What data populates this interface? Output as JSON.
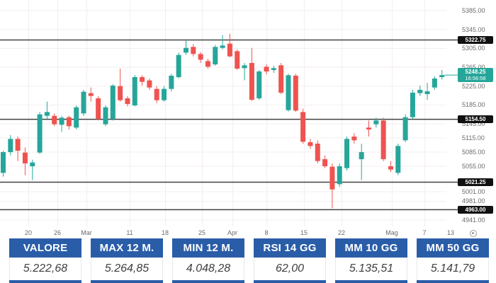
{
  "colors": {
    "up": "#26a69a",
    "down": "#ef5350",
    "level_line": "#424242",
    "grid": "#f4eef0",
    "axis_text": "#6b6b6b",
    "badge_dark_bg": "#101010",
    "badge_text": "#ffffff",
    "price_badge_bg": "#26a69a",
    "table_header_bg": "#2a5da8",
    "table_header_text": "#ffffff",
    "table_value_text": "#3f3f3f"
  },
  "chart_data": [
    {
      "type": "candlestick",
      "title": "",
      "xlabel": "",
      "ylabel": "",
      "grid": true,
      "legend": "none",
      "ylim": [
        4935,
        5392
      ],
      "x_tick_labels": [
        {
          "t": "20",
          "x": 40
        },
        {
          "t": "26",
          "x": 81
        },
        {
          "t": "Mar",
          "x": 122
        },
        {
          "t": "11",
          "x": 183
        },
        {
          "t": "18",
          "x": 233
        },
        {
          "t": "25",
          "x": 285
        },
        {
          "t": "Apr",
          "x": 328
        },
        {
          "t": "8",
          "x": 376
        },
        {
          "t": "15",
          "x": 429
        },
        {
          "t": "22",
          "x": 482
        },
        {
          "t": "Mag",
          "x": 553
        },
        {
          "t": "7",
          "x": 599
        },
        {
          "t": "13",
          "x": 636
        }
      ],
      "y_tick_labels": [
        "5385.00",
        "5345.00",
        "5305.00",
        "5265.00",
        "5225.00",
        "5185.00",
        "5145.00",
        "5115.00",
        "5085.00",
        "5055.00",
        "5001.00",
        "4981.00",
        "4941.00"
      ],
      "horizontal_levels": [
        "5322.75",
        "5154.50",
        "5021.25",
        "4963.00"
      ],
      "last_price": "5248.25",
      "last_price_time": "16:56:58",
      "ohlc": [
        [
          5041,
          5088,
          5033,
          5085
        ],
        [
          5085,
          5121,
          5078,
          5113
        ],
        [
          5113,
          5118,
          5066,
          5088
        ],
        [
          5084,
          5095,
          5036,
          5061
        ],
        [
          5055,
          5069,
          5026,
          5063
        ],
        [
          5084,
          5170,
          5081,
          5165
        ],
        [
          5162,
          5192,
          5155,
          5170
        ],
        [
          5162,
          5167,
          5140,
          5144
        ],
        [
          5143,
          5162,
          5128,
          5158
        ],
        [
          5159,
          5162,
          5133,
          5140
        ],
        [
          5137,
          5184,
          5133,
          5180
        ],
        [
          5167,
          5217,
          5162,
          5213
        ],
        [
          5210,
          5222,
          5192,
          5204
        ],
        [
          5199,
          5204,
          5152,
          5155
        ],
        [
          5144,
          5184,
          5140,
          5180
        ],
        [
          5155,
          5229,
          5152,
          5226
        ],
        [
          5225,
          5262,
          5192,
          5195
        ],
        [
          5199,
          5204,
          5182,
          5187
        ],
        [
          5184,
          5248,
          5182,
          5244
        ],
        [
          5244,
          5248,
          5226,
          5234
        ],
        [
          5237,
          5241,
          5217,
          5222
        ],
        [
          5219,
          5225,
          5189,
          5195
        ],
        [
          5195,
          5225,
          5192,
          5219
        ],
        [
          5219,
          5251,
          5214,
          5247
        ],
        [
          5244,
          5296,
          5241,
          5291
        ],
        [
          5296,
          5321,
          5291,
          5306
        ],
        [
          5308,
          5314,
          5288,
          5293
        ],
        [
          5293,
          5297,
          5274,
          5281
        ],
        [
          5278,
          5283,
          5262,
          5266
        ],
        [
          5271,
          5312,
          5268,
          5308
        ],
        [
          5306,
          5333,
          5303,
          5311
        ],
        [
          5315,
          5336,
          5286,
          5288
        ],
        [
          5299,
          5303,
          5259,
          5262
        ],
        [
          5263,
          5274,
          5237,
          5269
        ],
        [
          5274,
          5306,
          5193,
          5196
        ],
        [
          5199,
          5259,
          5196,
          5256
        ],
        [
          5266,
          5271,
          5250,
          5256
        ],
        [
          5259,
          5268,
          5253,
          5263
        ],
        [
          5269,
          5274,
          5208,
          5211
        ],
        [
          5174,
          5251,
          5171,
          5248
        ],
        [
          5247,
          5251,
          5170,
          5173
        ],
        [
          5170,
          5177,
          5103,
          5107
        ],
        [
          5106,
          5113,
          5092,
          5098
        ],
        [
          5103,
          5110,
          5061,
          5066
        ],
        [
          5070,
          5078,
          5051,
          5055
        ],
        [
          5054,
          5061,
          4966,
          5006
        ],
        [
          5017,
          5061,
          5011,
          5055
        ],
        [
          5051,
          5118,
          5046,
          5113
        ],
        [
          5118,
          5125,
          5103,
          5110
        ],
        [
          5070,
          5103,
          5026,
          5085
        ],
        [
          5137,
          5152,
          5118,
          5133
        ],
        [
          5144,
          5158,
          5137,
          5152
        ],
        [
          5152,
          5158,
          5066,
          5070
        ],
        [
          5055,
          5066,
          5043,
          5048
        ],
        [
          5041,
          5103,
          5036,
          5098
        ],
        [
          5110,
          5165,
          5106,
          5159
        ],
        [
          5159,
          5217,
          5155,
          5211
        ],
        [
          5210,
          5226,
          5204,
          5217
        ],
        [
          5208,
          5232,
          5196,
          5214
        ],
        [
          5222,
          5246,
          5217,
          5241
        ],
        [
          5244,
          5259,
          5239,
          5248.25
        ]
      ]
    },
    {
      "type": "table",
      "columns": [
        "VALORE",
        "MAX 12 M.",
        "MIN 12 M.",
        "RSI 14 GG",
        "MM 10 GG",
        "MM 50 GG"
      ],
      "values": [
        "5.222,68",
        "5.264,85",
        "4.048,28",
        "62,00",
        "5.135,51",
        "5.141,79"
      ]
    }
  ],
  "icons": {
    "axis_settings": "gear-icon"
  }
}
